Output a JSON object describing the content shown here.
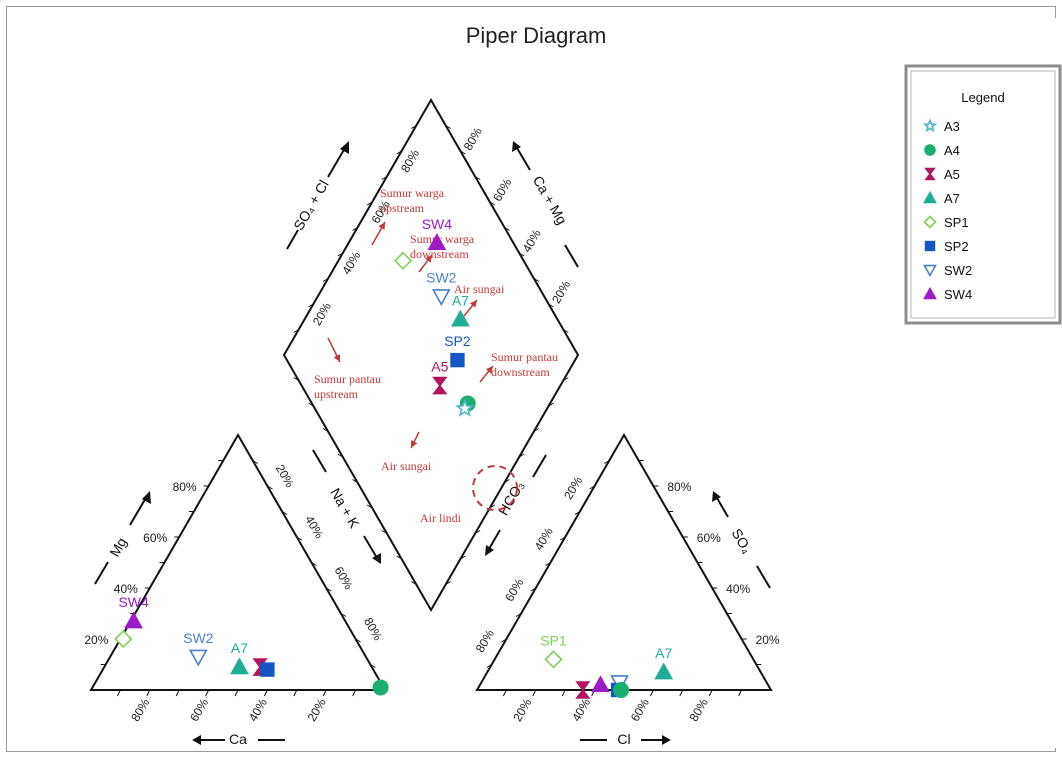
{
  "chart_data": {
    "type": "scatter",
    "title": "Piper Diagram",
    "legend": {
      "title": "Legend",
      "position": "top-right",
      "items": [
        {
          "name": "A3",
          "marker": "star",
          "color": "#4fb3c9",
          "filled": false
        },
        {
          "name": "A4",
          "marker": "circle",
          "color": "#1aae6f",
          "filled": true
        },
        {
          "name": "A5",
          "marker": "hourglass",
          "color": "#b0155e",
          "filled": true
        },
        {
          "name": "A7",
          "marker": "triangle",
          "color": "#1fae95",
          "filled": true
        },
        {
          "name": "SP1",
          "marker": "diamond",
          "color": "#7fcf5a",
          "filled": false
        },
        {
          "name": "SP2",
          "marker": "square",
          "color": "#1556c4",
          "filled": true
        },
        {
          "name": "SW2",
          "marker": "triangle-down",
          "color": "#4a7fc4",
          "filled": false
        },
        {
          "name": "SW4",
          "marker": "triangle",
          "color": "#9b1cc4",
          "filled": true
        }
      ]
    },
    "ticks": [
      "20%",
      "40%",
      "60%",
      "80%"
    ],
    "axes": {
      "mg": "Mg",
      "ca": "Ca",
      "nak": "Na + K",
      "hco3": "HCO₃",
      "cl": "Cl",
      "so4": "SO₄",
      "so4cl": "SO₄ + Cl",
      "camg": "Ca + Mg"
    },
    "cation_triangle": [
      {
        "name": "SW4",
        "label": "SW4",
        "ca": 72,
        "mg": 27
      },
      {
        "name": "SP1",
        "label": "",
        "ca": 79,
        "mg": 20
      },
      {
        "name": "SW2",
        "label": "SW2",
        "ca": 57,
        "mg": 13
      },
      {
        "name": "A7",
        "label": "A7",
        "ca": 45,
        "mg": 9
      },
      {
        "name": "A5",
        "label": "",
        "ca": 38,
        "mg": 9
      },
      {
        "name": "SP2",
        "label": "",
        "ca": 36,
        "mg": 8
      },
      {
        "name": "A4",
        "label": "",
        "ca": 1,
        "mg": 1
      }
    ],
    "anion_triangle": [
      {
        "name": "SP1",
        "label": "SP1",
        "cl": 20,
        "so4": 12
      },
      {
        "name": "A7",
        "label": "A7",
        "cl": 60,
        "so4": 7
      },
      {
        "name": "A5",
        "label": "",
        "cl": 36,
        "so4": 0
      },
      {
        "name": "SW4",
        "label": "",
        "cl": 41,
        "so4": 2
      },
      {
        "name": "SW2",
        "label": "",
        "cl": 47,
        "so4": 3
      },
      {
        "name": "SP2",
        "label": "",
        "cl": 48,
        "so4": 0
      },
      {
        "name": "A4",
        "label": "",
        "cl": 49,
        "so4": 0
      }
    ],
    "diamond": [
      {
        "name": "SW4",
        "label": "SW4",
        "so4cl": 70,
        "camg": 74
      },
      {
        "name": "SP1",
        "label": "",
        "so4cl": 78,
        "camg": 59
      },
      {
        "name": "SW2",
        "label": "SW2",
        "so4cl": 58,
        "camg": 65
      },
      {
        "name": "A7",
        "label": "A7",
        "so4cl": 47,
        "camg": 67
      },
      {
        "name": "SP2",
        "label": "SP2",
        "so4cl": 40,
        "camg": 58
      },
      {
        "name": "A5",
        "label": "A5",
        "so4cl": 41,
        "camg": 47
      },
      {
        "name": "A4",
        "label": "",
        "so4cl": 28,
        "camg": 53
      },
      {
        "name": "A3",
        "label": "",
        "so4cl": 28,
        "camg": 51
      }
    ]
  },
  "annotations": {
    "color": "#c0393b",
    "items": [
      {
        "lines": [
          "Sumur warga",
          "upstream"
        ]
      },
      {
        "lines": [
          "Sumur warga",
          "downstream"
        ]
      },
      {
        "lines": [
          "Air sungai"
        ]
      },
      {
        "lines": [
          "Sumur pantau",
          "downstream"
        ]
      },
      {
        "lines": [
          "Sumur pantau",
          "upstream"
        ]
      },
      {
        "lines": [
          "Air sungai"
        ]
      },
      {
        "lines": [
          "Air lindi"
        ]
      }
    ]
  }
}
